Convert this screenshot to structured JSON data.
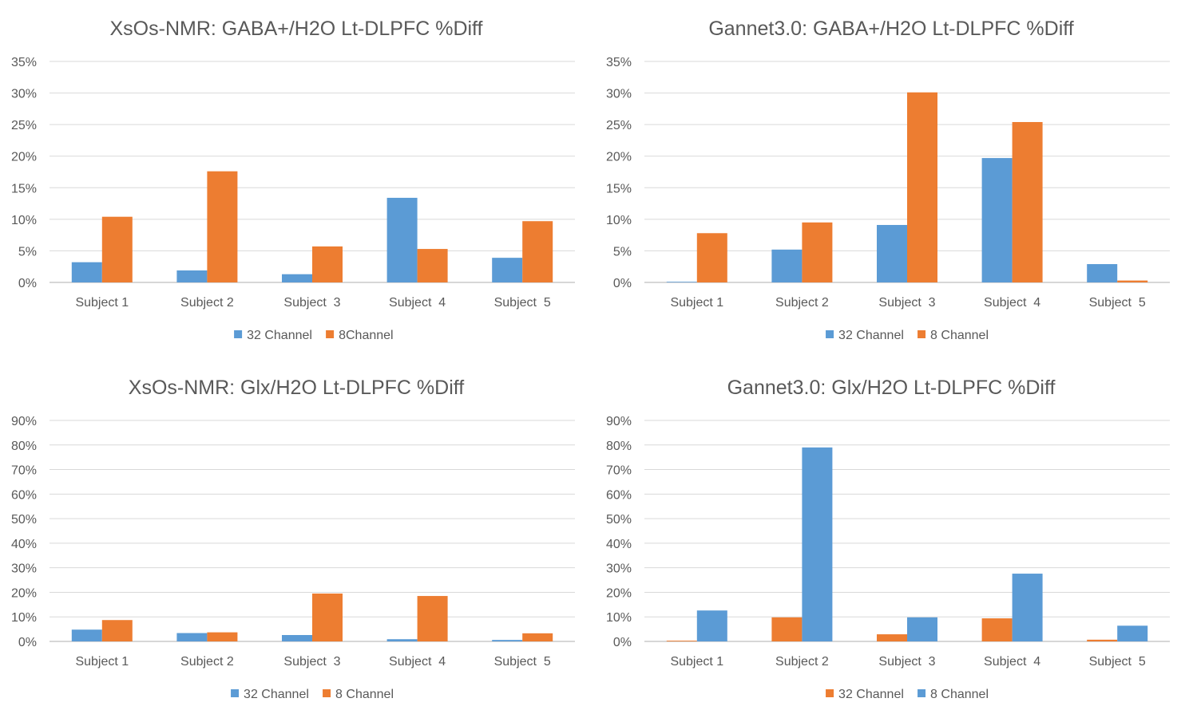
{
  "colors": {
    "blue": "#5b9bd5",
    "orange": "#ed7d31"
  },
  "chart_data": [
    {
      "type": "bar",
      "title": "XsOs-NMR: GABA+/H2O Lt-DLPFC %Diff",
      "categories": [
        "Subject 1",
        "Subject 2",
        "Subject  3",
        "Subject  4",
        "Subject  5"
      ],
      "yticks": [
        "0%",
        "5%",
        "10%",
        "15%",
        "20%",
        "25%",
        "30%",
        "35%"
      ],
      "ylim": [
        0,
        35
      ],
      "series": [
        {
          "name": "32 Channel",
          "color": "#5b9bd5",
          "values": [
            3.2,
            1.9,
            1.3,
            13.4,
            3.9
          ]
        },
        {
          "name": "8Channel",
          "color": "#ed7d31",
          "values": [
            10.4,
            17.6,
            5.7,
            5.3,
            9.7
          ]
        }
      ],
      "legend": "bottom"
    },
    {
      "type": "bar",
      "title": "Gannet3.0: GABA+/H2O Lt-DLPFC %Diff",
      "categories": [
        "Subject 1",
        "Subject 2",
        "Subject  3",
        "Subject  4",
        "Subject  5"
      ],
      "yticks": [
        "0%",
        "5%",
        "10%",
        "15%",
        "20%",
        "25%",
        "30%",
        "35%"
      ],
      "ylim": [
        0,
        35
      ],
      "series": [
        {
          "name": "32 Channel",
          "color": "#5b9bd5",
          "values": [
            0.1,
            5.2,
            9.1,
            19.7,
            2.9
          ]
        },
        {
          "name": "8 Channel",
          "color": "#ed7d31",
          "values": [
            7.8,
            9.5,
            30.1,
            25.4,
            0.3
          ]
        }
      ],
      "legend": "bottom"
    },
    {
      "type": "bar",
      "title": "XsOs-NMR: Glx/H2O Lt-DLPFC %Diff",
      "categories": [
        "Subject 1",
        "Subject 2",
        "Subject  3",
        "Subject  4",
        "Subject  5"
      ],
      "yticks": [
        "0%",
        "10%",
        "20%",
        "30%",
        "40%",
        "50%",
        "60%",
        "70%",
        "80%",
        "90%"
      ],
      "ylim": [
        0,
        90
      ],
      "series": [
        {
          "name": "32 Channel",
          "color": "#5b9bd5",
          "values": [
            4.8,
            3.4,
            2.6,
            0.9,
            0.6
          ]
        },
        {
          "name": "8 Channel",
          "color": "#ed7d31",
          "values": [
            8.7,
            3.7,
            19.5,
            18.5,
            3.3
          ]
        }
      ],
      "legend": "bottom"
    },
    {
      "type": "bar",
      "title": "Gannet3.0: Glx/H2O Lt-DLPFC %Diff",
      "categories": [
        "Subject 1",
        "Subject 2",
        "Subject  3",
        "Subject  4",
        "Subject  5"
      ],
      "yticks": [
        "0%",
        "10%",
        "20%",
        "30%",
        "40%",
        "50%",
        "60%",
        "70%",
        "80%",
        "90%"
      ],
      "ylim": [
        0,
        90
      ],
      "series": [
        {
          "name": "32 Channel",
          "color": "#ed7d31",
          "values": [
            0.3,
            9.8,
            2.9,
            9.4,
            0.7
          ]
        },
        {
          "name": "8 Channel",
          "color": "#5b9bd5",
          "values": [
            12.6,
            79.0,
            9.8,
            27.6,
            6.4
          ]
        }
      ],
      "legend": "bottom"
    }
  ]
}
